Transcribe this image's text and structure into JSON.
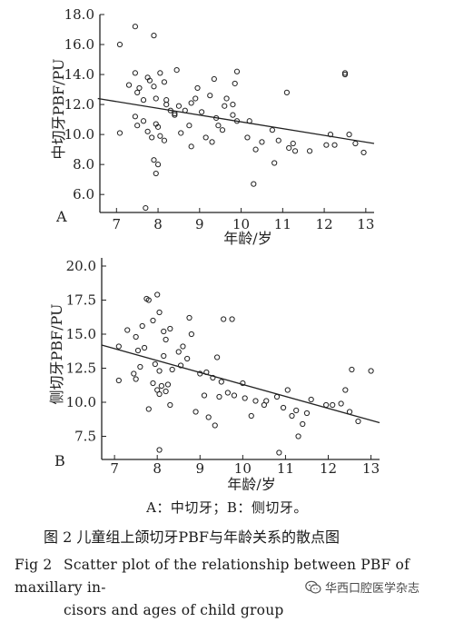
{
  "chart_data": [
    {
      "type": "scatter",
      "panel_label": "A",
      "ylabel": "中切牙PBF/PU",
      "xlabel": "年龄/岁",
      "xlim": [
        6.6,
        13.2
      ],
      "ylim": [
        4.8,
        18.0
      ],
      "xticks": [
        7,
        8,
        9,
        10,
        11,
        12,
        13
      ],
      "yticks": [
        6.0,
        8.0,
        10.0,
        12.0,
        14.0,
        16.0,
        18.0
      ],
      "ytick_labels": [
        "6.0",
        "8.0",
        "10.0",
        "12.0",
        "14.0",
        "16.0",
        "18.0"
      ],
      "trend_line": {
        "x": [
          6.55,
          13.2
        ],
        "y": [
          12.4,
          9.4
        ]
      },
      "points": [
        [
          7.08,
          16.0
        ],
        [
          7.45,
          17.2
        ],
        [
          7.9,
          16.6
        ],
        [
          7.08,
          10.1
        ],
        [
          7.3,
          13.3
        ],
        [
          7.45,
          14.1
        ],
        [
          7.5,
          12.8
        ],
        [
          7.55,
          13.1
        ],
        [
          7.65,
          12.3
        ],
        [
          7.75,
          13.8
        ],
        [
          7.8,
          13.6
        ],
        [
          7.9,
          13.2
        ],
        [
          7.95,
          12.4
        ],
        [
          8.05,
          14.1
        ],
        [
          8.15,
          13.5
        ],
        [
          8.2,
          12.3
        ],
        [
          8.2,
          12.0
        ],
        [
          8.3,
          11.6
        ],
        [
          8.4,
          11.3
        ],
        [
          8.4,
          11.4
        ],
        [
          8.5,
          11.9
        ],
        [
          8.45,
          14.3
        ],
        [
          7.45,
          11.2
        ],
        [
          7.5,
          10.6
        ],
        [
          7.65,
          10.9
        ],
        [
          7.75,
          10.2
        ],
        [
          7.85,
          9.8
        ],
        [
          7.95,
          10.7
        ],
        [
          8.0,
          10.5
        ],
        [
          8.05,
          9.9
        ],
        [
          8.15,
          9.6
        ],
        [
          7.9,
          8.3
        ],
        [
          8.0,
          8.0
        ],
        [
          7.95,
          7.4
        ],
        [
          7.7,
          5.1
        ],
        [
          8.55,
          10.1
        ],
        [
          8.65,
          11.6
        ],
        [
          8.75,
          10.6
        ],
        [
          8.8,
          12.1
        ],
        [
          8.8,
          9.2
        ],
        [
          8.9,
          12.4
        ],
        [
          8.95,
          13.1
        ],
        [
          9.05,
          11.5
        ],
        [
          9.15,
          9.8
        ],
        [
          9.25,
          12.6
        ],
        [
          9.3,
          9.5
        ],
        [
          9.35,
          13.7
        ],
        [
          9.4,
          11.1
        ],
        [
          9.45,
          10.6
        ],
        [
          9.55,
          10.3
        ],
        [
          9.6,
          11.9
        ],
        [
          9.65,
          12.4
        ],
        [
          9.8,
          11.3
        ],
        [
          9.8,
          12.0
        ],
        [
          9.85,
          13.4
        ],
        [
          9.9,
          14.2
        ],
        [
          9.9,
          10.9
        ],
        [
          10.15,
          9.8
        ],
        [
          10.2,
          10.9
        ],
        [
          10.3,
          6.7
        ],
        [
          10.35,
          9.0
        ],
        [
          10.5,
          9.5
        ],
        [
          10.75,
          10.3
        ],
        [
          10.8,
          8.1
        ],
        [
          10.9,
          9.6
        ],
        [
          11.1,
          12.8
        ],
        [
          11.15,
          9.1
        ],
        [
          11.25,
          9.4
        ],
        [
          11.3,
          8.9
        ],
        [
          11.65,
          8.9
        ],
        [
          12.05,
          9.3
        ],
        [
          12.15,
          10.0
        ],
        [
          12.25,
          9.3
        ],
        [
          12.5,
          14.1
        ],
        [
          12.5,
          14.0
        ],
        [
          12.6,
          10.0
        ],
        [
          12.75,
          9.4
        ],
        [
          12.95,
          8.8
        ]
      ]
    },
    {
      "type": "scatter",
      "panel_label": "B",
      "ylabel": "侧切牙PBF/PU",
      "xlabel": "年龄/岁",
      "xlim": [
        6.7,
        13.2
      ],
      "ylim": [
        5.8,
        20.6
      ],
      "xticks": [
        7,
        8,
        9,
        10,
        11,
        12,
        13
      ],
      "yticks": [
        7.5,
        10.0,
        12.5,
        15.0,
        17.5,
        20.0
      ],
      "ytick_labels": [
        "7.5",
        "10.0",
        "12.5",
        "15.0",
        "17.5",
        "20.0"
      ],
      "trend_line": {
        "x": [
          6.7,
          13.2
        ],
        "y": [
          14.2,
          8.5
        ]
      },
      "points": [
        [
          7.3,
          15.3
        ],
        [
          7.5,
          14.8
        ],
        [
          7.55,
          13.8
        ],
        [
          7.65,
          15.6
        ],
        [
          7.75,
          17.6
        ],
        [
          7.8,
          17.5
        ],
        [
          7.9,
          16.0
        ],
        [
          8.0,
          17.9
        ],
        [
          8.05,
          16.6
        ],
        [
          8.15,
          15.2
        ],
        [
          8.2,
          14.6
        ],
        [
          8.3,
          15.4
        ],
        [
          7.1,
          14.1
        ],
        [
          7.1,
          11.6
        ],
        [
          7.45,
          12.1
        ],
        [
          7.5,
          11.7
        ],
        [
          7.6,
          12.6
        ],
        [
          7.7,
          14.0
        ],
        [
          7.8,
          9.5
        ],
        [
          7.9,
          11.4
        ],
        [
          7.95,
          12.8
        ],
        [
          8.0,
          10.9
        ],
        [
          8.05,
          10.6
        ],
        [
          8.05,
          12.3
        ],
        [
          8.1,
          11.2
        ],
        [
          8.15,
          13.4
        ],
        [
          8.2,
          10.8
        ],
        [
          8.25,
          11.3
        ],
        [
          8.3,
          9.8
        ],
        [
          8.35,
          12.4
        ],
        [
          8.05,
          6.5
        ],
        [
          8.5,
          13.7
        ],
        [
          8.55,
          12.7
        ],
        [
          8.6,
          14.1
        ],
        [
          8.7,
          13.2
        ],
        [
          8.75,
          16.2
        ],
        [
          8.8,
          15.0
        ],
        [
          8.9,
          9.3
        ],
        [
          9.0,
          12.1
        ],
        [
          9.1,
          10.5
        ],
        [
          9.15,
          12.2
        ],
        [
          9.2,
          8.9
        ],
        [
          9.3,
          11.8
        ],
        [
          9.35,
          8.3
        ],
        [
          9.4,
          13.3
        ],
        [
          9.45,
          10.4
        ],
        [
          9.5,
          11.5
        ],
        [
          9.55,
          16.1
        ],
        [
          9.65,
          10.7
        ],
        [
          9.75,
          16.1
        ],
        [
          9.8,
          10.5
        ],
        [
          10.0,
          11.4
        ],
        [
          10.05,
          10.3
        ],
        [
          10.2,
          9.0
        ],
        [
          10.3,
          10.1
        ],
        [
          10.5,
          9.8
        ],
        [
          10.55,
          10.1
        ],
        [
          10.8,
          10.4
        ],
        [
          10.85,
          6.3
        ],
        [
          10.95,
          9.6
        ],
        [
          11.05,
          10.9
        ],
        [
          11.15,
          9.0
        ],
        [
          11.25,
          9.4
        ],
        [
          11.3,
          7.5
        ],
        [
          11.4,
          8.4
        ],
        [
          11.5,
          9.2
        ],
        [
          11.6,
          10.2
        ],
        [
          11.95,
          9.8
        ],
        [
          12.1,
          9.8
        ],
        [
          12.3,
          9.9
        ],
        [
          12.4,
          10.9
        ],
        [
          12.5,
          9.3
        ],
        [
          12.55,
          12.4
        ],
        [
          12.7,
          8.6
        ],
        [
          13.0,
          12.3
        ]
      ]
    }
  ],
  "legend_note": "A：中切牙；B：侧切牙。",
  "caption_zh": "图 2   儿童组上颌切牙PBF与年龄关系的散点图",
  "caption_en_tag": "Fig 2",
  "caption_en_line1": "Scatter plot of the relationship between PBF of maxillary in-",
  "caption_en_line2": "cisors and ages of child group",
  "watermark": "华西口腔医学杂志",
  "watermark_icon": "wechat-icon"
}
